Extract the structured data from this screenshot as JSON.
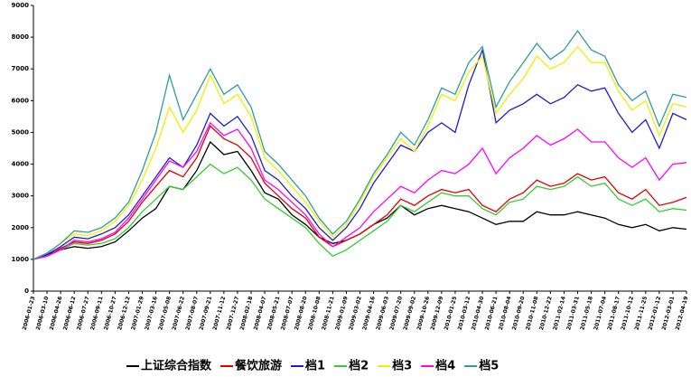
{
  "chart_data": {
    "type": "line",
    "categories": [
      "2006-01-23",
      "2006-03-10",
      "2006-04-26",
      "2006-06-12",
      "2006-07-27",
      "2006-09-11",
      "2006-10-27",
      "2006-12-12",
      "2007-01-29",
      "2007-03-16",
      "2007-05-08",
      "2007-06-22",
      "2007-08-07",
      "2007-09-21",
      "2007-11-12",
      "2007-12-27",
      "2008-02-18",
      "2008-04-07",
      "2008-05-21",
      "2008-07-07",
      "2008-08-20",
      "2008-10-08",
      "2008-11-21",
      "2009-01-09",
      "2009-03-02",
      "2009-04-16",
      "2009-06-03",
      "2009-07-20",
      "2009-09-02",
      "2009-10-26",
      "2009-12-09",
      "2010-01-25",
      "2010-03-12",
      "2010-04-30",
      "2010-06-21",
      "2010-08-04",
      "2010-09-20",
      "2010-11-08",
      "2010-12-22",
      "2011-02-14",
      "2011-03-31",
      "2011-05-18",
      "2011-07-04",
      "2011-08-17",
      "2011-10-12",
      "2011-11-25",
      "2012-01-12",
      "2012-03-01",
      "2012-04-19"
    ],
    "series": [
      {
        "name": "上证综合指数",
        "color": "#000000",
        "values": [
          1000,
          1150,
          1300,
          1400,
          1350,
          1400,
          1550,
          1900,
          2300,
          2600,
          3300,
          3200,
          3800,
          4700,
          4300,
          4400,
          3800,
          3100,
          2900,
          2400,
          2100,
          1700,
          1500,
          1600,
          1800,
          2100,
          2300,
          2700,
          2400,
          2600,
          2700,
          2600,
          2500,
          2300,
          2100,
          2200,
          2200,
          2500,
          2400,
          2400,
          2500,
          2400,
          2300,
          2100,
          2000,
          2100,
          1900,
          2000,
          1950
        ]
      },
      {
        "name": "餐饮旅游",
        "color": "#e00000",
        "values": [
          1000,
          1100,
          1350,
          1550,
          1500,
          1600,
          1800,
          2200,
          2800,
          3300,
          3800,
          3600,
          4200,
          5200,
          4800,
          4600,
          4200,
          3400,
          3000,
          2600,
          2300,
          1700,
          1400,
          1600,
          1800,
          2100,
          2400,
          2900,
          2700,
          3000,
          3200,
          3100,
          3200,
          2700,
          2500,
          2900,
          3100,
          3500,
          3300,
          3400,
          3700,
          3500,
          3600,
          3100,
          2900,
          3200,
          2700,
          2800,
          2950
        ]
      },
      {
        "name": "档1",
        "color": "#1c1cd0",
        "values": [
          1000,
          1150,
          1400,
          1700,
          1650,
          1800,
          2000,
          2400,
          3000,
          3600,
          4200,
          3900,
          4600,
          5600,
          5200,
          5500,
          4900,
          3800,
          3500,
          3000,
          2600,
          2000,
          1600,
          2000,
          2600,
          3400,
          4000,
          4600,
          4400,
          5000,
          5300,
          5000,
          6500,
          7600,
          5300,
          5700,
          5900,
          6200,
          5900,
          6100,
          6500,
          6300,
          6400,
          5600,
          5000,
          5400,
          4500,
          5600,
          5400
        ]
      },
      {
        "name": "档2",
        "color": "#33cc33",
        "values": [
          1000,
          1100,
          1300,
          1500,
          1450,
          1500,
          1650,
          2000,
          2500,
          2900,
          3300,
          3200,
          3600,
          4000,
          3700,
          3900,
          3500,
          2900,
          2600,
          2300,
          2000,
          1500,
          1100,
          1300,
          1600,
          1900,
          2200,
          2700,
          2500,
          2800,
          3100,
          3000,
          3000,
          2600,
          2400,
          2800,
          2900,
          3300,
          3200,
          3300,
          3600,
          3300,
          3400,
          2900,
          2700,
          2900,
          2500,
          2600,
          2550
        ]
      },
      {
        "name": "档3",
        "color": "#f0f000",
        "values": [
          1000,
          1200,
          1500,
          1800,
          1750,
          1900,
          2200,
          2700,
          3500,
          4500,
          5800,
          5000,
          5700,
          6800,
          5900,
          6200,
          5500,
          4200,
          3800,
          3300,
          2800,
          2200,
          1700,
          2100,
          2800,
          3600,
          4200,
          4800,
          4400,
          5200,
          6200,
          6000,
          6900,
          7400,
          5600,
          6200,
          6700,
          7400,
          7000,
          7200,
          7700,
          7200,
          7200,
          6300,
          5700,
          6000,
          4900,
          5900,
          5800
        ]
      },
      {
        "name": "档4",
        "color": "#ff00ff",
        "values": [
          1000,
          1100,
          1300,
          1600,
          1550,
          1650,
          1850,
          2300,
          2900,
          3500,
          4100,
          3900,
          4400,
          5300,
          4900,
          5100,
          4500,
          3500,
          3200,
          2800,
          2400,
          1800,
          1400,
          1700,
          2000,
          2500,
          2900,
          3300,
          3100,
          3500,
          3800,
          3700,
          4000,
          4500,
          3700,
          4200,
          4500,
          4900,
          4600,
          4800,
          5100,
          4700,
          4700,
          4200,
          3900,
          4200,
          3500,
          4000,
          4050
        ]
      },
      {
        "name": "档5",
        "color": "#2e9c9c",
        "values": [
          1000,
          1200,
          1500,
          1900,
          1850,
          2000,
          2300,
          2800,
          3800,
          5000,
          6800,
          5400,
          6200,
          7000,
          6200,
          6500,
          5800,
          4400,
          4000,
          3500,
          3000,
          2300,
          1800,
          2200,
          2900,
          3700,
          4300,
          5000,
          4600,
          5400,
          6400,
          6200,
          7200,
          7700,
          5800,
          6600,
          7200,
          7800,
          7300,
          7600,
          8200,
          7600,
          7400,
          6500,
          6000,
          6300,
          5200,
          6200,
          6100
        ]
      }
    ],
    "ylim": [
      0,
      9000
    ],
    "yticks": [
      0,
      1000,
      2000,
      3000,
      4000,
      5000,
      6000,
      7000,
      8000,
      9000
    ],
    "legend": "bottom"
  }
}
